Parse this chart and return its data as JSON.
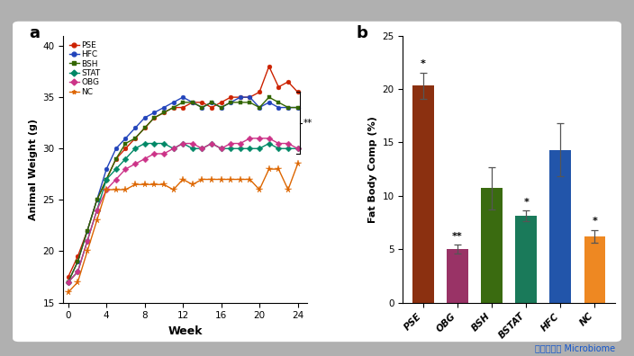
{
  "fig_bg": "#b0b0b0",
  "panel_bg": "#ffffff",
  "panel_a_label": "a",
  "panel_b_label": "b",
  "line_xlabel": "Week",
  "line_ylabel": "Animal Weight (g)",
  "line_xlim": [
    -0.5,
    25
  ],
  "line_ylim": [
    15,
    41
  ],
  "line_xticks": [
    0,
    4,
    8,
    12,
    16,
    20,
    24
  ],
  "line_yticks": [
    15,
    20,
    25,
    30,
    35,
    40
  ],
  "series_order": [
    "PSE",
    "HFC",
    "BSH",
    "STAT",
    "OBG",
    "NC"
  ],
  "series": {
    "PSE": {
      "color": "#cc2200",
      "marker": "o",
      "x": [
        0,
        1,
        2,
        3,
        4,
        5,
        6,
        7,
        8,
        9,
        10,
        11,
        12,
        13,
        14,
        15,
        16,
        17,
        18,
        19,
        20,
        21,
        22,
        23,
        24
      ],
      "y": [
        17.5,
        19.5,
        22,
        25,
        27,
        29,
        30,
        31,
        32,
        33,
        33.5,
        34,
        34,
        34.5,
        34.5,
        34,
        34.5,
        35,
        35,
        35,
        35.5,
        38,
        36,
        36.5,
        35.5
      ]
    },
    "HFC": {
      "color": "#2244bb",
      "marker": "o",
      "x": [
        0,
        1,
        2,
        3,
        4,
        5,
        6,
        7,
        8,
        9,
        10,
        11,
        12,
        13,
        14,
        15,
        16,
        17,
        18,
        19,
        20,
        21,
        22,
        23,
        24
      ],
      "y": [
        17,
        19,
        22,
        25,
        28,
        30,
        31,
        32,
        33,
        33.5,
        34,
        34.5,
        35,
        34.5,
        34,
        34.5,
        34,
        34.5,
        35,
        35,
        34,
        34.5,
        34,
        34,
        34
      ]
    },
    "BSH": {
      "color": "#336600",
      "marker": "s",
      "x": [
        0,
        1,
        2,
        3,
        4,
        5,
        6,
        7,
        8,
        9,
        10,
        11,
        12,
        13,
        14,
        15,
        16,
        17,
        18,
        19,
        20,
        21,
        22,
        23,
        24
      ],
      "y": [
        17,
        19,
        22,
        25,
        27,
        29,
        30.5,
        31,
        32,
        33,
        33.5,
        34,
        34.5,
        34.5,
        34,
        34.5,
        34,
        34.5,
        34.5,
        34.5,
        34,
        35,
        34.5,
        34,
        34
      ]
    },
    "STAT": {
      "color": "#008866",
      "marker": "D",
      "x": [
        0,
        1,
        2,
        3,
        4,
        5,
        6,
        7,
        8,
        9,
        10,
        11,
        12,
        13,
        14,
        15,
        16,
        17,
        18,
        19,
        20,
        21,
        22,
        23,
        24
      ],
      "y": [
        17,
        18,
        21,
        24,
        27,
        28,
        29,
        30,
        30.5,
        30.5,
        30.5,
        30,
        30.5,
        30,
        30,
        30.5,
        30,
        30,
        30,
        30,
        30,
        30.5,
        30,
        30,
        30
      ]
    },
    "OBG": {
      "color": "#cc3388",
      "marker": "D",
      "x": [
        0,
        1,
        2,
        3,
        4,
        5,
        6,
        7,
        8,
        9,
        10,
        11,
        12,
        13,
        14,
        15,
        16,
        17,
        18,
        19,
        20,
        21,
        22,
        23,
        24
      ],
      "y": [
        17,
        18,
        21,
        24,
        26,
        27,
        28,
        28.5,
        29,
        29.5,
        29.5,
        30,
        30.5,
        30.5,
        30,
        30.5,
        30,
        30.5,
        30.5,
        31,
        31,
        31,
        30.5,
        30.5,
        30
      ]
    },
    "NC": {
      "color": "#dd6600",
      "marker": "*",
      "x": [
        0,
        1,
        2,
        3,
        4,
        5,
        6,
        7,
        8,
        9,
        10,
        11,
        12,
        13,
        14,
        15,
        16,
        17,
        18,
        19,
        20,
        21,
        22,
        23,
        24
      ],
      "y": [
        16,
        17,
        20,
        23,
        26,
        26,
        26,
        26.5,
        26.5,
        26.5,
        26.5,
        26,
        27,
        26.5,
        27,
        27,
        27,
        27,
        27,
        27,
        26,
        28,
        28,
        26,
        28.5
      ]
    }
  },
  "bar_ylabel": "Fat Body Comp (%)",
  "bar_ylim": [
    0,
    25
  ],
  "bar_yticks": [
    0,
    5,
    10,
    15,
    20,
    25
  ],
  "bar_categories": [
    "PSE",
    "OBG",
    "BSH",
    "BSTAT",
    "HFC",
    "NC"
  ],
  "bar_values": [
    20.3,
    5.0,
    10.7,
    8.1,
    14.3,
    6.2
  ],
  "bar_errors": [
    1.2,
    0.4,
    2.0,
    0.5,
    2.5,
    0.6
  ],
  "bar_colors": [
    "#8B3010",
    "#993366",
    "#3A6B10",
    "#1A7A5A",
    "#2255AA",
    "#EE8822"
  ],
  "bar_sig": [
    "*",
    "**",
    "",
    "*",
    "",
    "*"
  ],
  "source_text": "图片来源： Microbiome"
}
